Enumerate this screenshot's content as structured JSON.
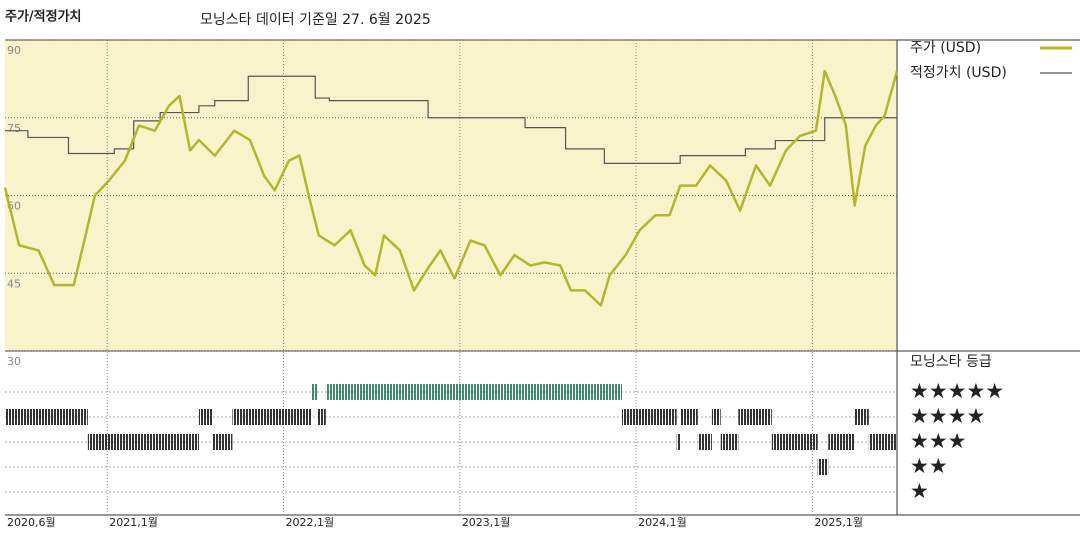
{
  "chart_data": {
    "type": "line",
    "title": "주가/적정가치",
    "subtitle": "모닝스타 데이터 기준일 27. 6월 2025",
    "xlim": [
      2020.42,
      2025.48
    ],
    "xticks": [
      {
        "value": 2020.42,
        "label": "2020,6월"
      },
      {
        "value": 2021,
        "label": "2021,1월"
      },
      {
        "value": 2022,
        "label": "2022,1월"
      },
      {
        "value": 2023,
        "label": "2023,1월"
      },
      {
        "value": 2024,
        "label": "2024,1월"
      },
      {
        "value": 2025,
        "label": "2025,1월"
      }
    ],
    "ylim": [
      30,
      90
    ],
    "yticks": [
      90,
      75,
      60,
      45,
      30
    ],
    "grid": true,
    "legend": "right",
    "series": [
      {
        "name": "주가 (USD)",
        "color": "#b3b62a",
        "step": false,
        "x": [
          2020.42,
          2020.5,
          2020.61,
          2020.7,
          2020.81,
          2020.87,
          2020.93,
          2021.01,
          2021.1,
          2021.18,
          2021.27,
          2021.35,
          2021.41,
          2021.47,
          2021.52,
          2021.61,
          2021.72,
          2021.81,
          2021.89,
          2021.95,
          2022.03,
          2022.09,
          2022.15,
          2022.2,
          2022.29,
          2022.38,
          2022.46,
          2022.52,
          2022.57,
          2022.66,
          2022.74,
          2022.83,
          2022.89,
          2022.97,
          2023.06,
          2023.14,
          2023.23,
          2023.31,
          2023.4,
          2023.48,
          2023.57,
          2023.63,
          2023.71,
          2023.8,
          2023.85,
          2023.94,
          2024.02,
          2024.11,
          2024.19,
          2024.25,
          2024.34,
          2024.42,
          2024.51,
          2024.59,
          2024.68,
          2024.76,
          2024.85,
          2024.93,
          2025.02,
          2025.07,
          2025.13,
          2025.19,
          2025.24,
          2025.3,
          2025.36,
          2025.41,
          2025.48
        ],
        "values": [
          61.5,
          50.4,
          49.4,
          42.7,
          42.7,
          51.3,
          60,
          62.9,
          66.7,
          73.5,
          72.5,
          77.3,
          79.2,
          68.7,
          70.7,
          67.7,
          72.5,
          70.7,
          63.8,
          61,
          66.7,
          67.7,
          59,
          52.3,
          50.4,
          53.3,
          46.5,
          44.6,
          52.3,
          49.4,
          41.7,
          46.5,
          49.4,
          44,
          51.3,
          50.4,
          44.6,
          48.5,
          46.5,
          47.1,
          46.5,
          41.7,
          41.7,
          38.8,
          44.6,
          48.5,
          53.3,
          56.2,
          56.2,
          61.9,
          61.9,
          65.8,
          62.9,
          57.1,
          65.8,
          61.9,
          68.7,
          71.5,
          72.5,
          84,
          79.2,
          73.5,
          58.1,
          69.6,
          73.5,
          75.4,
          84
        ]
      },
      {
        "name": "적정가치 (USD)",
        "color": "#555555",
        "step": true,
        "x": [
          2020.42,
          2020.55,
          2020.78,
          2021.04,
          2021.15,
          2021.3,
          2021.52,
          2021.61,
          2021.8,
          2022.18,
          2022.26,
          2022.82,
          2023.37,
          2023.6,
          2023.82,
          2024.25,
          2024.62,
          2024.79,
          2025.07,
          2025.48
        ],
        "values": [
          72.5,
          71.2,
          68.1,
          69,
          74.4,
          76,
          77.3,
          78.3,
          83,
          78.8,
          78.3,
          75,
          73.1,
          69,
          66.2,
          67.7,
          69,
          70.6,
          75,
          75
        ]
      }
    ],
    "ratings": {
      "name": "모닝스타 등급",
      "labels": [
        "★★★★★",
        "★★★★",
        "★★★",
        "★★",
        "★"
      ],
      "levels": [
        5,
        4,
        3,
        2,
        1
      ],
      "colors": {
        "5": "#3f8a6a",
        "other": "#333333"
      },
      "x": [
        2020.42,
        2020.89,
        2021.52,
        2021.6,
        2021.71,
        2022.16,
        2022.19,
        2022.24,
        2023.92,
        2024.23,
        2024.25,
        2024.35,
        2024.43,
        2024.48,
        2024.58,
        2024.77,
        2025.03,
        2025.09,
        2025.24,
        2025.32,
        2025.48
      ],
      "values": [
        4,
        3,
        4,
        3,
        4,
        5,
        4,
        5,
        4,
        3,
        4,
        3,
        4,
        3,
        4,
        3,
        2,
        3,
        4,
        3,
        3
      ]
    }
  }
}
